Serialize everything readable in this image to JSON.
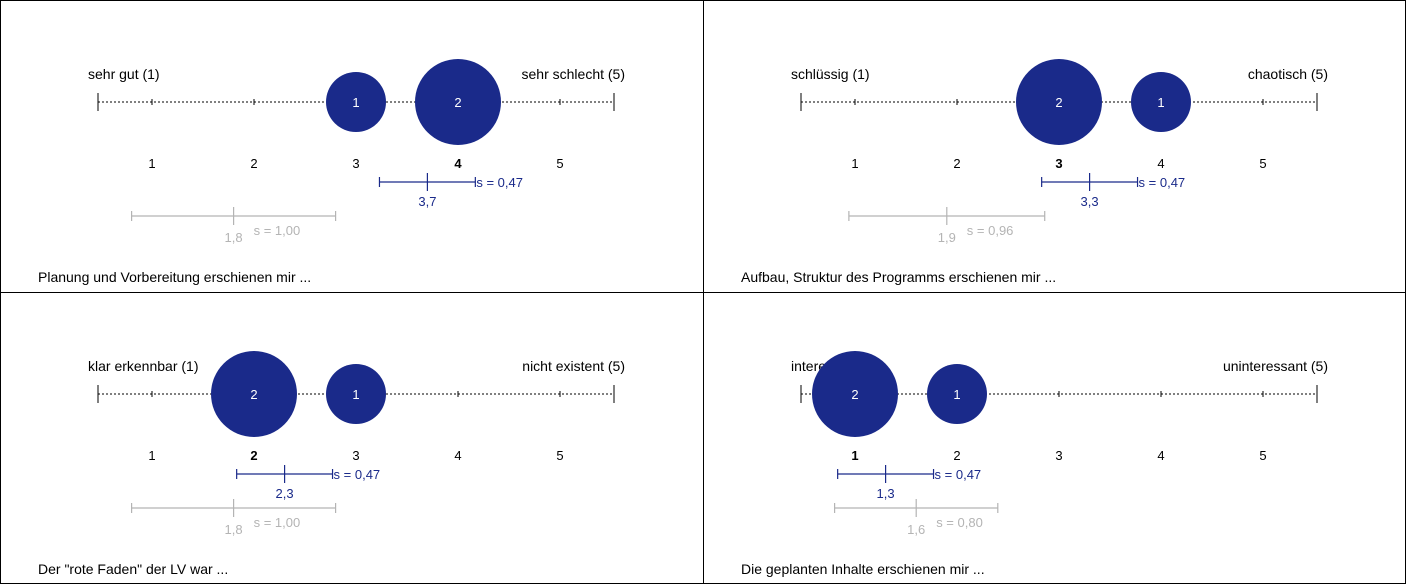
{
  "colors": {
    "accent": "#1a2a8a",
    "reference": "#b4b4b4",
    "axis": "#000000",
    "frame": "#000000"
  },
  "chart_data": [
    {
      "type": "scatter",
      "question": "Planung und Vorbereitung erschienen mir ...",
      "left_label": "sehr gut (1)",
      "right_label": "sehr schlecht (5)",
      "ticks": [
        "1",
        "2",
        "3",
        "4",
        "5"
      ],
      "highlight_tick": "4",
      "bubbles": [
        {
          "x": 3,
          "count": 1
        },
        {
          "x": 4,
          "count": 2
        }
      ],
      "mean": {
        "value": 3.7,
        "label": "3,7",
        "sd": 0.47,
        "sd_label": "s = 0,47"
      },
      "reference": {
        "value": 1.8,
        "label": "1,8",
        "sd": 1.0,
        "sd_label": "s = 1,00"
      }
    },
    {
      "type": "scatter",
      "question": "Aufbau, Struktur des Programms erschienen mir ...",
      "left_label": "schlüssig (1)",
      "right_label": "chaotisch (5)",
      "ticks": [
        "1",
        "2",
        "3",
        "4",
        "5"
      ],
      "highlight_tick": "3",
      "bubbles": [
        {
          "x": 3,
          "count": 2
        },
        {
          "x": 4,
          "count": 1
        }
      ],
      "mean": {
        "value": 3.3,
        "label": "3,3",
        "sd": 0.47,
        "sd_label": "s = 0,47"
      },
      "reference": {
        "value": 1.9,
        "label": "1,9",
        "sd": 0.96,
        "sd_label": "s = 0,96"
      }
    },
    {
      "type": "scatter",
      "question": "Der \"rote Faden\" der LV war ...",
      "left_label": "klar erkennbar (1)",
      "right_label": "nicht existent (5)",
      "ticks": [
        "1",
        "2",
        "3",
        "4",
        "5"
      ],
      "highlight_tick": "2",
      "bubbles": [
        {
          "x": 2,
          "count": 2
        },
        {
          "x": 3,
          "count": 1
        }
      ],
      "mean": {
        "value": 2.3,
        "label": "2,3",
        "sd": 0.47,
        "sd_label": "s = 0,47"
      },
      "reference": {
        "value": 1.8,
        "label": "1,8",
        "sd": 1.0,
        "sd_label": "s = 1,00"
      }
    },
    {
      "type": "scatter",
      "question": "Die geplanten Inhalte erschienen mir ...",
      "left_label": "interessant (1)",
      "right_label": "uninteressant (5)",
      "ticks": [
        "1",
        "2",
        "3",
        "4",
        "5"
      ],
      "highlight_tick": "1",
      "bubbles": [
        {
          "x": 1,
          "count": 2
        },
        {
          "x": 2,
          "count": 1
        }
      ],
      "mean": {
        "value": 1.3,
        "label": "1,3",
        "sd": 0.47,
        "sd_label": "s = 0,47"
      },
      "reference": {
        "value": 1.6,
        "label": "1,6",
        "sd": 0.8,
        "sd_label": "s = 0,80"
      }
    }
  ]
}
